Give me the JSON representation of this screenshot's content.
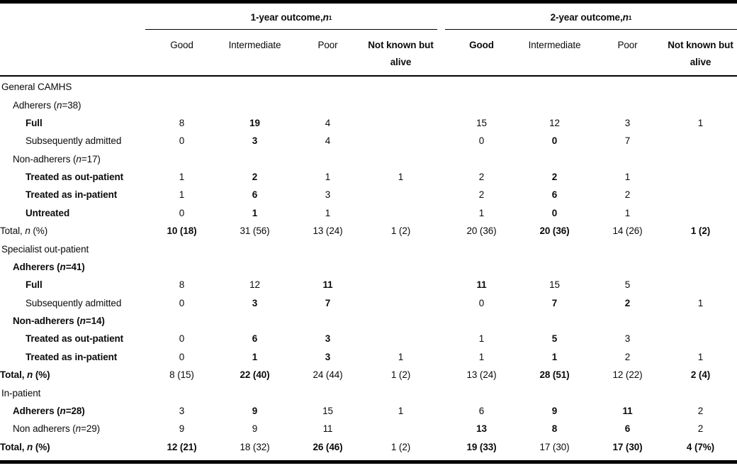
{
  "table": {
    "col_groups": [
      {
        "label": "1-year outcome, n",
        "footnote_sup": "1"
      },
      {
        "label": "2-year outcome, n",
        "footnote_sup": "1"
      }
    ],
    "columns": [
      "Good",
      "Intermediate",
      "Poor",
      "Not known but alive"
    ],
    "columns_bold_group1": [
      false,
      false,
      false,
      true
    ],
    "columns_bold_group2": [
      true,
      false,
      false,
      true
    ],
    "rows": [
      {
        "kind": "section",
        "label": "General CAMHS"
      },
      {
        "kind": "group",
        "label": "Adherers (n=38)"
      },
      {
        "kind": "item",
        "label": "Full",
        "label_bold": true,
        "cells": [
          "8",
          "19",
          "4",
          "",
          "15",
          "12",
          "3",
          "1"
        ],
        "cell_bold": [
          0,
          1,
          0,
          0,
          0,
          0,
          0,
          0
        ]
      },
      {
        "kind": "item",
        "label": "Subsequently admitted",
        "cells": [
          "0",
          "3",
          "4",
          "",
          "0",
          "0",
          "7",
          ""
        ],
        "cell_bold": [
          0,
          1,
          0,
          0,
          0,
          1,
          0,
          0
        ]
      },
      {
        "kind": "group",
        "label": "Non-adherers (n=17)"
      },
      {
        "kind": "item",
        "label": "Treated as out-patient",
        "label_bold": true,
        "cells": [
          "1",
          "2",
          "1",
          "1",
          "2",
          "2",
          "1",
          ""
        ],
        "cell_bold": [
          0,
          1,
          0,
          0,
          0,
          1,
          0,
          0
        ]
      },
      {
        "kind": "item",
        "label": "Treated as in-patient",
        "label_bold": true,
        "cells": [
          "1",
          "6",
          "3",
          "",
          "2",
          "6",
          "2",
          ""
        ],
        "cell_bold": [
          0,
          1,
          0,
          0,
          0,
          1,
          0,
          0
        ]
      },
      {
        "kind": "item",
        "label": "Untreated",
        "label_bold": true,
        "cells": [
          "0",
          "1",
          "1",
          "",
          "1",
          "0",
          "1",
          ""
        ],
        "cell_bold": [
          0,
          1,
          0,
          0,
          0,
          1,
          0,
          0
        ]
      },
      {
        "kind": "total",
        "label": "Total, n (%)",
        "cells": [
          "10 (18)",
          "31 (56)",
          "13 (24)",
          "1 (2)",
          "20 (36)",
          "20 (36)",
          "14 (26)",
          "1 (2)"
        ],
        "cell_bold": [
          1,
          0,
          0,
          0,
          0,
          1,
          0,
          1
        ]
      },
      {
        "kind": "section",
        "label": "Specialist out-patient"
      },
      {
        "kind": "group",
        "label": "Adherers (n=41)",
        "label_bold": true
      },
      {
        "kind": "item",
        "label": "Full",
        "label_bold": true,
        "cells": [
          "8",
          "12",
          "11",
          "",
          "11",
          "15",
          "5",
          ""
        ],
        "cell_bold": [
          0,
          0,
          1,
          0,
          1,
          0,
          0,
          0
        ]
      },
      {
        "kind": "item",
        "label": "Subsequently admitted",
        "cells": [
          "0",
          "3",
          "7",
          "",
          "0",
          "7",
          "2",
          "1"
        ],
        "cell_bold": [
          0,
          1,
          1,
          0,
          0,
          1,
          1,
          0
        ]
      },
      {
        "kind": "group",
        "label": "Non-adherers (n=14)",
        "label_bold": true
      },
      {
        "kind": "item",
        "label": "Treated as out-patient",
        "label_bold": true,
        "cells": [
          "0",
          "6",
          "3",
          "",
          "1",
          "5",
          "3",
          ""
        ],
        "cell_bold": [
          0,
          1,
          1,
          0,
          0,
          1,
          0,
          0
        ]
      },
      {
        "kind": "item",
        "label": "Treated as in-patient",
        "label_bold": true,
        "cells": [
          "0",
          "1",
          "3",
          "1",
          "1",
          "1",
          "2",
          "1"
        ],
        "cell_bold": [
          0,
          1,
          1,
          0,
          0,
          1,
          0,
          0
        ]
      },
      {
        "kind": "total",
        "label": "Total, n (%)",
        "label_bold": true,
        "cells": [
          "8 (15)",
          "22 (40)",
          "24 (44)",
          "1 (2)",
          "13 (24)",
          "28 (51)",
          "12 (22)",
          "2 (4)"
        ],
        "cell_bold": [
          0,
          1,
          0,
          0,
          0,
          1,
          0,
          1
        ]
      },
      {
        "kind": "section",
        "label": "In-patient"
      },
      {
        "kind": "group",
        "label": "Adherers (n=28)",
        "label_bold": true,
        "cells": [
          "3",
          "9",
          "15",
          "1",
          "6",
          "9",
          "11",
          "2"
        ],
        "cell_bold": [
          0,
          1,
          0,
          0,
          0,
          1,
          1,
          0
        ]
      },
      {
        "kind": "group",
        "label": "Non adherers (n=29)",
        "cells": [
          "9",
          "9",
          "11",
          "",
          "13",
          "8",
          "6",
          "2"
        ],
        "cell_bold": [
          0,
          0,
          0,
          0,
          1,
          1,
          1,
          0
        ]
      },
      {
        "kind": "total",
        "label": "Total, n (%)",
        "label_bold": true,
        "cells": [
          "12 (21)",
          "18 (32)",
          "26 (46)",
          "1 (2)",
          "19 (33)",
          "17 (30)",
          "17 (30)",
          "4 (7%)"
        ],
        "cell_bold": [
          1,
          0,
          1,
          0,
          1,
          0,
          1,
          1
        ]
      }
    ]
  }
}
